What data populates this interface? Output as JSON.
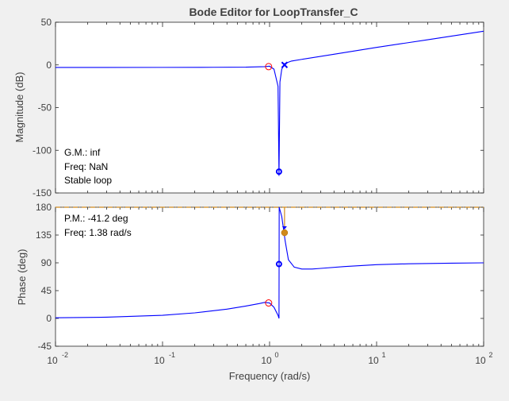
{
  "window": {
    "background": "#f0f0f0"
  },
  "chart_data": [
    {
      "type": "line",
      "title": "Bode Editor for LoopTransfer_C",
      "ylabel": "Magnitude (dB)",
      "x_scale": "log",
      "xlim": [
        0.01,
        100
      ],
      "ylim": [
        -150,
        50
      ],
      "yticks": [
        50,
        0,
        -50,
        -100,
        -150
      ],
      "grid": false,
      "series": [
        {
          "color": "#0000ff",
          "x": [
            0.01,
            0.1,
            0.3,
            0.6,
            0.9,
            1.0,
            1.1,
            1.2,
            1.225,
            1.25,
            1.3,
            1.38,
            1.6,
            2,
            4,
            10,
            30,
            100
          ],
          "y": [
            -3.0,
            -2.9,
            -2.8,
            -2.6,
            -2.0,
            -1.5,
            -5,
            -25,
            -130,
            -20,
            -5,
            1.5,
            4.5,
            6.5,
            12.5,
            20.5,
            29.5,
            39.5
          ]
        }
      ],
      "markers": [
        {
          "kind": "zero",
          "shape": "circle",
          "color": "#ff0000",
          "x": 0.98,
          "y": -2.0
        },
        {
          "kind": "pole",
          "shape": "cross",
          "color": "#0000ff",
          "x": 1.38,
          "y": 0.0
        },
        {
          "kind": "notch",
          "shape": "ring",
          "color": "#0000ff",
          "x": 1.225,
          "y": -125
        }
      ],
      "annotations": [
        "G.M.: inf",
        "Freq: NaN",
        "Stable loop"
      ]
    },
    {
      "type": "line",
      "xlabel": "Frequency (rad/s)",
      "ylabel": "Phase (deg)",
      "x_scale": "log",
      "xlim": [
        0.01,
        100
      ],
      "ylim": [
        -45,
        180
      ],
      "yticks": [
        180,
        135,
        90,
        45,
        0,
        -45
      ],
      "xticks": [
        {
          "base": "10",
          "exp": "-2"
        },
        {
          "base": "10",
          "exp": "-1"
        },
        {
          "base": "10",
          "exp": "0"
        },
        {
          "base": "10",
          "exp": "1"
        },
        {
          "base": "10",
          "exp": "2"
        }
      ],
      "grid": false,
      "reference_line": {
        "y": 180,
        "color": "#d08a1c"
      },
      "series": [
        {
          "color": "#0000ff",
          "x": [
            0.01,
            0.03,
            0.1,
            0.2,
            0.4,
            0.6,
            0.8,
            0.9,
            1.0,
            1.1,
            1.2,
            1.225,
            1.23,
            1.3,
            1.4,
            1.5,
            1.7,
            2,
            2.5,
            3,
            5,
            10,
            20,
            50,
            100
          ],
          "y": [
            1,
            2,
            5,
            9,
            15,
            20,
            24,
            26,
            25,
            18,
            5,
            0,
            180,
            165,
            125,
            95,
            83,
            80,
            80,
            81,
            84,
            87,
            88.5,
            89.5,
            90
          ]
        }
      ],
      "markers": [
        {
          "kind": "zero",
          "shape": "circle",
          "color": "#ff0000",
          "x": 0.98,
          "y": 25
        },
        {
          "kind": "notch",
          "shape": "ring",
          "color": "#0000ff",
          "x": 1.225,
          "y": 88
        },
        {
          "kind": "margin",
          "shape": "dot",
          "color": "#d08a1c",
          "x": 1.38,
          "y": 138.8
        }
      ],
      "annotations": [
        "P.M.: -41.2 deg",
        "Freq: 1.38 rad/s"
      ]
    }
  ]
}
